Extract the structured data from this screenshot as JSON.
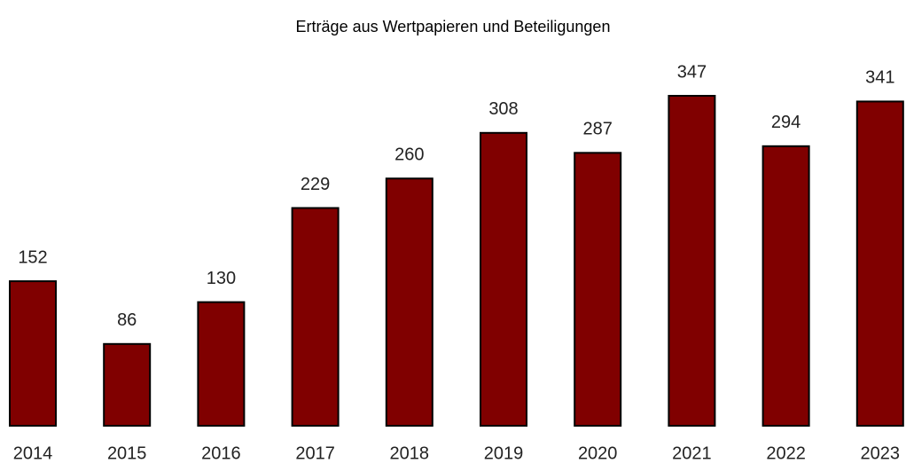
{
  "chart_data": {
    "type": "bar",
    "title": "Erträge aus Wertpapieren und Beteiligungen",
    "categories": [
      "2014",
      "2015",
      "2016",
      "2017",
      "2018",
      "2019",
      "2020",
      "2021",
      "2022",
      "2023"
    ],
    "values": [
      152,
      86,
      130,
      229,
      260,
      308,
      287,
      347,
      294,
      341
    ],
    "color": "#800000"
  }
}
